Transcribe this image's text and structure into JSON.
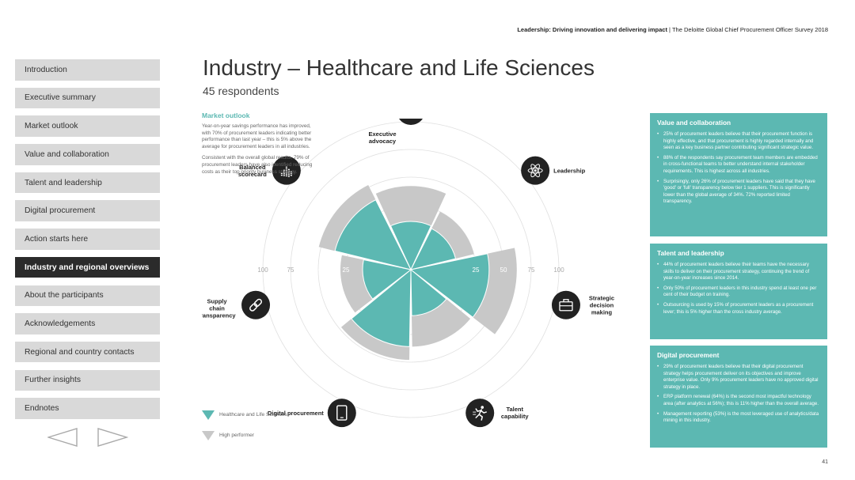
{
  "header": {
    "bold": "Leadership: Driving innovation and delivering impact",
    "separator": " | ",
    "rest": "The Deloitte Global Chief Procurement Officer Survey 2018"
  },
  "sidebar": {
    "items": [
      {
        "label": "Introduction"
      },
      {
        "label": "Executive summary"
      },
      {
        "label": "Market outlook"
      },
      {
        "label": "Value and collaboration"
      },
      {
        "label": "Talent and leadership"
      },
      {
        "label": "Digital procurement"
      },
      {
        "label": "Action starts here"
      },
      {
        "label": "Industry and regional overviews",
        "active": true
      },
      {
        "label": "About the participants"
      },
      {
        "label": "Acknowledgements"
      },
      {
        "label": "Regional and country contacts"
      },
      {
        "label": "Further insights"
      },
      {
        "label": "Endnotes"
      }
    ],
    "prev_icon": "triangle-left-icon",
    "next_icon": "triangle-right-icon"
  },
  "title": "Industry – Healthcare and Life Sciences",
  "subtitle": "45 respondents",
  "intro": {
    "heading": "Market outlook",
    "p1": "Year-on-year savings performance has improved, with 70% of procurement leaders indicating better performance than last year – this is 5% above the average for procurement leaders in all industries.",
    "p2": "Consistent with the overall global results, 79% of procurement leaders have also identified reducing costs as their top priority business strategy."
  },
  "legend": {
    "industry": "Healthcare and Life Sciences",
    "high": "High performer"
  },
  "colors": {
    "teal": "#5cb8b2",
    "grey": "#c8c8c8",
    "dark": "#222222"
  },
  "chart_data": {
    "type": "radial-bar",
    "scale_max": 100,
    "axis_labels": [
      "100",
      "75",
      "50",
      "25",
      "25",
      "50",
      "75",
      "100"
    ],
    "categories": [
      {
        "label_lines": [
          "Executive",
          "advocacy"
        ],
        "icon": "people-at-table-icon",
        "industry": 10,
        "high": 42
      },
      {
        "label_lines": [
          "Leadership"
        ],
        "icon": "atom-icon",
        "industry": 8,
        "high": 25
      },
      {
        "label_lines": [
          "Strategic",
          "decision",
          "making"
        ],
        "icon": "briefcase-icon",
        "industry": 37,
        "high": 62
      },
      {
        "label_lines": [
          "Talent",
          "capability"
        ],
        "icon": "runner-icon",
        "industry": 8,
        "high": 36
      },
      {
        "label_lines": [
          "Digital procurement"
        ],
        "icon": "tablet-icon",
        "industry": 36,
        "high": 48
      },
      {
        "label_lines": [
          "Supply",
          "chain",
          "transparency"
        ],
        "icon": "chain-link-icon",
        "industry": 10,
        "high": 30
      },
      {
        "label_lines": [
          "Balanced",
          "scorecard"
        ],
        "icon": "bar-chart-icon",
        "industry": 37,
        "high": 52
      }
    ],
    "series": [
      {
        "name": "Healthcare and Life Sciences"
      },
      {
        "name": "High performer"
      }
    ]
  },
  "panels": [
    {
      "title": "Value and collaboration",
      "bullets": [
        "25% of procurement leaders believe that their procurement function is highly effective, and that procurement is highly regarded internally and seen as a key business partner contributing significant strategic value.",
        "88% of the respondents say procurement team members are embedded in cross-functional teams to better understand internal stakeholder requirements. This is highest across all industries.",
        "Surprisingly, only 26% of procurement leaders have said that they have 'good' or 'full' transparency below tier 1 suppliers. This is significantly lower than the global average of 34%. 72% reported limited transparency."
      ]
    },
    {
      "title": "Talent and leadership",
      "bullets": [
        "44% of procurement leaders believe their teams have the necessary skills to deliver on their procurement strategy, continuing the trend of year-on-year increases since 2014.",
        "Only 50% of procurement leaders in this industry spend at least one per cent of their budget on training.",
        "Outsourcing is used by 15% of procurement leaders as a procurement lever; this is 5% higher than the cross industry average."
      ]
    },
    {
      "title": "Digital procurement",
      "bullets": [
        "29% of procurement leaders believe that their digital procurement strategy helps procurement deliver on its objectives and improve enterprise value. Only 9% procurement leaders have no approved digital strategy in place.",
        "ERP platform renewal (64%) is the second most impactful technology area (after analytics at 56%); this is 11% higher than the overall average.",
        "Management reporting (53%) is the most leveraged use of analytics/data mining in this industry."
      ]
    }
  ],
  "page_number": "41"
}
